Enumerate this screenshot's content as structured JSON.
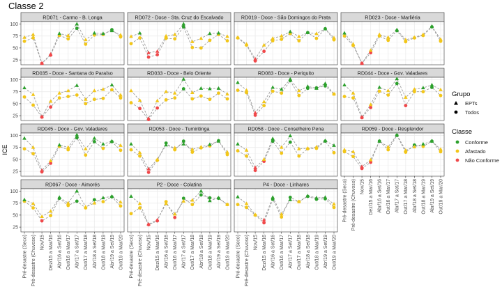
{
  "chart_data": {
    "type": "line",
    "title": "Classe 2",
    "xlabel": "",
    "ylabel": "ICE",
    "ylim": [
      15,
      105
    ],
    "yticks": [
      25,
      50,
      75,
      100
    ],
    "grid": true,
    "categories": [
      "Pré-desastre (Seco)",
      "Pré-desastre (Chuvoso)",
      "Nov/15",
      "Dez/15 a Mar/16",
      "Abr/16 a Set/16",
      "Out/16 a Mar/17",
      "Abr/17 a Set/17",
      "Out/17 a Mar/18",
      "Abr/18 a Set/18",
      "Out/18 a Mar/19",
      "Abr/19 a Set/19",
      "Out/19 a Mar/20"
    ],
    "legend": {
      "placement": "right",
      "grupo": {
        "title": "Grupo",
        "items": [
          {
            "label": "EPTs",
            "shape": "triangle"
          },
          {
            "label": "Todos",
            "shape": "circle"
          }
        ]
      },
      "classe": {
        "title": "Classe",
        "items": [
          {
            "label": "Conforme",
            "color": "#2ca02c"
          },
          {
            "label": "Afastado",
            "color": "#f2c619"
          },
          {
            "label": "Não Conforme",
            "color": "#f0484a"
          }
        ]
      }
    },
    "colors": {
      "Conforme": "#2ca02c",
      "Afastado": "#f2c619",
      "Não Conforme": "#f0484a",
      "line": "#9a9a9a",
      "strip_bg": "#d9d9d9",
      "strip_border": "#333333",
      "panel_border": "#333333",
      "grid": "#ebebeb"
    },
    "panels": [
      {
        "title": "RD071 - Carmo - B. Longa",
        "EPTs": [
          72,
          78,
          18,
          37,
          80,
          76,
          100,
          67,
          81,
          80,
          86,
          77
        ],
        "Todos": [
          64,
          71,
          18,
          35,
          76,
          69,
          91,
          58,
          77,
          78,
          88,
          73
        ],
        "EPTs_class": [
          "A",
          "A",
          "N",
          "N",
          "C",
          "A",
          "C",
          "A",
          "C",
          "C",
          "C",
          "A"
        ],
        "Todos_class": [
          "A",
          "A",
          "N",
          "N",
          "A",
          "A",
          "C",
          "A",
          "A",
          "A",
          "C",
          "A"
        ]
      },
      {
        "title": "RD072 - Doce - Sta. Cruz do Escalvado",
        "EPTs": [
          74,
          81,
          40,
          43,
          75,
          78,
          100,
          63,
          70,
          80,
          81,
          74
        ],
        "Todos": [
          59,
          71,
          31,
          36,
          70,
          69,
          94,
          51,
          50,
          66,
          78,
          65
        ],
        "EPTs_class": [
          "A",
          "C",
          "N",
          "N",
          "A",
          "A",
          "C",
          "A",
          "A",
          "C",
          "C",
          "A"
        ],
        "Todos_class": [
          "A",
          "A",
          "N",
          "N",
          "A",
          "A",
          "C",
          "A",
          "A",
          "A",
          "A",
          "A"
        ]
      },
      {
        "title": "RD019 - Doce - São Domingos do Prata",
        "EPTs": [
          72,
          58,
          27,
          56,
          70,
          75,
          84,
          74,
          82,
          80,
          90,
          71
        ],
        "Todos": [
          71,
          56,
          23,
          43,
          65,
          68,
          80,
          65,
          82,
          70,
          90,
          67
        ],
        "EPTs_class": [
          "A",
          "A",
          "N",
          "A",
          "A",
          "A",
          "C",
          "A",
          "C",
          "A",
          "C",
          "A"
        ],
        "Todos_class": [
          "A",
          "A",
          "N",
          "N",
          "A",
          "A",
          "A",
          "A",
          "C",
          "A",
          "C",
          "A"
        ]
      },
      {
        "title": "RD023 - Doce - Marliéria",
        "EPTs": [
          81,
          58,
          18,
          45,
          78,
          72,
          88,
          67,
          72,
          78,
          95,
          68
        ],
        "Todos": [
          75,
          55,
          18,
          40,
          75,
          66,
          86,
          63,
          71,
          76,
          94,
          64
        ],
        "EPTs_class": [
          "C",
          "A",
          "N",
          "A",
          "A",
          "A",
          "C",
          "A",
          "A",
          "A",
          "C",
          "A"
        ],
        "Todos_class": [
          "A",
          "A",
          "N",
          "N",
          "A",
          "A",
          "C",
          "A",
          "A",
          "A",
          "C",
          "A"
        ]
      },
      {
        "title": "RD035 - Doce - Santana do Paraíso",
        "EPTs": [
          83,
          69,
          23,
          55,
          72,
          77,
          88,
          59,
          77,
          80,
          89,
          68
        ],
        "Todos": [
          64,
          47,
          22,
          43,
          62,
          65,
          68,
          50,
          59,
          61,
          79,
          62
        ],
        "EPTs_class": [
          "C",
          "A",
          "N",
          "A",
          "A",
          "A",
          "C",
          "A",
          "A",
          "A",
          "C",
          "A"
        ],
        "Todos_class": [
          "A",
          "A",
          "N",
          "N",
          "A",
          "A",
          "A",
          "A",
          "A",
          "A",
          "A",
          "A"
        ]
      },
      {
        "title": "RD033 - Doce - Belo Oriente",
        "EPTs": [
          77,
          57,
          19,
          56,
          75,
          72,
          101,
          73,
          82,
          81,
          82,
          70
        ],
        "Todos": [
          52,
          40,
          17,
          41,
          58,
          62,
          81,
          60,
          66,
          59,
          72,
          60
        ],
        "EPTs_class": [
          "A",
          "A",
          "N",
          "A",
          "A",
          "A",
          "C",
          "A",
          "C",
          "C",
          "C",
          "A"
        ],
        "Todos_class": [
          "A",
          "N",
          "N",
          "N",
          "A",
          "A",
          "C",
          "A",
          "A",
          "A",
          "A",
          "A"
        ]
      },
      {
        "title": "RD083 - Doce - Periquito",
        "EPTs": [
          94,
          78,
          31,
          54,
          84,
          80,
          101,
          77,
          86,
          82,
          92,
          70
        ],
        "Todos": [
          78,
          73,
          26,
          46,
          76,
          72,
          98,
          67,
          82,
          83,
          87,
          70
        ],
        "EPTs_class": [
          "C",
          "A",
          "N",
          "A",
          "C",
          "C",
          "C",
          "A",
          "C",
          "C",
          "C",
          "A"
        ],
        "Todos_class": [
          "A",
          "A",
          "N",
          "A",
          "A",
          "A",
          "C",
          "A",
          "C",
          "C",
          "C",
          "A"
        ]
      },
      {
        "title": "RD044 - Doce - Gov. Valadares",
        "EPTs": [
          89,
          72,
          22,
          48,
          84,
          77,
          102,
          63,
          80,
          83,
          89,
          79
        ],
        "Todos": [
          65,
          62,
          21,
          42,
          76,
          68,
          92,
          46,
          75,
          75,
          84,
          67
        ],
        "EPTs_class": [
          "C",
          "A",
          "N",
          "A",
          "C",
          "A",
          "C",
          "A",
          "A",
          "C",
          "C",
          "A"
        ],
        "Todos_class": [
          "A",
          "A",
          "N",
          "N",
          "A",
          "A",
          "C",
          "N",
          "A",
          "A",
          "C",
          "A"
        ]
      },
      {
        "title": "RD045 - Doce - Gov. Valadares",
        "EPTs": [
          94,
          75,
          27,
          47,
          80,
          75,
          101,
          72,
          94,
          82,
          88,
          79
        ],
        "Todos": [
          72,
          62,
          24,
          42,
          77,
          70,
          95,
          59,
          87,
          73,
          87,
          69
        ],
        "EPTs_class": [
          "C",
          "A",
          "N",
          "A",
          "C",
          "A",
          "C",
          "A",
          "C",
          "C",
          "C",
          "A"
        ],
        "Todos_class": [
          "A",
          "A",
          "N",
          "N",
          "A",
          "A",
          "C",
          "A",
          "C",
          "A",
          "C",
          "A"
        ]
      },
      {
        "title": "RD053 - Doce - Tumiritinga",
        "EPTs": [
          82,
          64,
          30,
          50,
          80,
          74,
          82,
          71,
          76,
          81,
          88,
          65
        ],
        "Todos": [
          70,
          57,
          23,
          48,
          84,
          70,
          88,
          65,
          74,
          78,
          89,
          60
        ],
        "EPTs_class": [
          "C",
          "A",
          "N",
          "A",
          "C",
          "A",
          "C",
          "A",
          "A",
          "C",
          "C",
          "A"
        ],
        "Todos_class": [
          "A",
          "A",
          "N",
          "A",
          "C",
          "A",
          "C",
          "A",
          "A",
          "A",
          "C",
          "A"
        ]
      },
      {
        "title": "RD058 - Doce - Conselheiro Pena",
        "EPTs": [
          82,
          69,
          33,
          50,
          93,
          75,
          99,
          72,
          73,
          76,
          89,
          79
        ],
        "Todos": [
          68,
          57,
          27,
          46,
          88,
          63,
          86,
          57,
          72,
          73,
          88,
          64
        ],
        "EPTs_class": [
          "C",
          "A",
          "N",
          "A",
          "C",
          "A",
          "C",
          "A",
          "A",
          "A",
          "C",
          "C"
        ],
        "Todos_class": [
          "A",
          "A",
          "N",
          "N",
          "C",
          "A",
          "C",
          "A",
          "A",
          "A",
          "C",
          "A"
        ]
      },
      {
        "title": "RD059 - Doce - Resplendor",
        "EPTs": [
          70,
          66,
          35,
          49,
          88,
          76,
          101,
          69,
          76,
          82,
          88,
          71
        ],
        "Todos": [
          66,
          56,
          31,
          44,
          88,
          70,
          100,
          65,
          80,
          77,
          88,
          66
        ],
        "EPTs_class": [
          "A",
          "A",
          "N",
          "A",
          "C",
          "A",
          "C",
          "A",
          "A",
          "C",
          "C",
          "A"
        ],
        "Todos_class": [
          "A",
          "A",
          "N",
          "N",
          "C",
          "A",
          "C",
          "A",
          "C",
          "A",
          "C",
          "A"
        ]
      },
      {
        "title": "RD067 - Doce - Aimorés",
        "EPTs": [
          82,
          74,
          47,
          58,
          87,
          75,
          100,
          67,
          75,
          86,
          89,
          77
        ],
        "Todos": [
          79,
          65,
          38,
          49,
          85,
          70,
          79,
          65,
          82,
          78,
          88,
          69
        ],
        "EPTs_class": [
          "C",
          "A",
          "A",
          "A",
          "C",
          "A",
          "C",
          "A",
          "A",
          "C",
          "C",
          "A"
        ],
        "Todos_class": [
          "A",
          "A",
          "N",
          "A",
          "C",
          "A",
          "C",
          "A",
          "C",
          "A",
          "C",
          "A"
        ]
      },
      {
        "title": "P2 - Doce - Colatina",
        "EPTs": [
          89,
          74,
          31,
          40,
          74,
          52,
          79,
          81,
          100,
          80,
          86,
          72
        ],
        "Todos": [
          53,
          65,
          30,
          38,
          78,
          45,
          85,
          72,
          92,
          86,
          85,
          72
        ],
        "EPTs_class": [
          "C",
          "A",
          "N",
          "N",
          "A",
          "A",
          "A",
          "A",
          "C",
          "C",
          "C",
          "A"
        ],
        "Todos_class": [
          "A",
          "A",
          "N",
          "N",
          "A",
          "N",
          "C",
          "A",
          "C",
          "C",
          "C",
          "A"
        ]
      },
      {
        "title": "P4 - Doce - Linhares",
        "EPTs": [
          88,
          74,
          51,
          40,
          87,
          52,
          82,
          78,
          90,
          86,
          87,
          73
        ],
        "Todos": [
          72,
          66,
          50,
          34,
          83,
          46,
          87,
          78,
          89,
          83,
          84,
          66
        ],
        "EPTs_class": [
          "C",
          "A",
          "A",
          "N",
          "C",
          "A",
          "C",
          "A",
          "C",
          "C",
          "C",
          "A"
        ],
        "Todos_class": [
          "A",
          "A",
          "A",
          "N",
          "C",
          "A",
          "C",
          "A",
          "C",
          "C",
          "C",
          "A"
        ]
      }
    ]
  }
}
